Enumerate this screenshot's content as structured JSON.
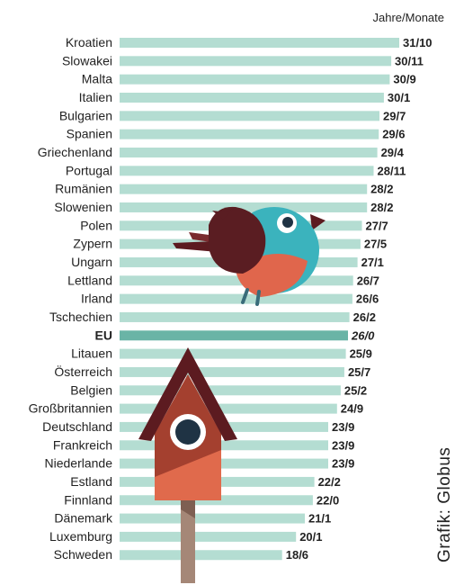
{
  "unit_label": "Jahre/Monate",
  "credit": "Grafik: Globus",
  "colors": {
    "bar": "#b4ddd2",
    "highlight_bar": "#6ab4a6",
    "text": "#222222",
    "house_roof": "#5c1b20",
    "house_body_dark": "#a4402f",
    "house_body_light": "#e06a4c",
    "pole": "#a58777",
    "bird_blue": "#3bb3bd",
    "bird_wing": "#5a1d22",
    "bird_belly": "#e0664c"
  },
  "chart_data": {
    "type": "bar",
    "orientation": "horizontal",
    "unit": "Jahre/Monate",
    "highlight": "EU",
    "categories": [
      "Kroatien",
      "Slowakei",
      "Malta",
      "Italien",
      "Bulgarien",
      "Spanien",
      "Griechenland",
      "Portugal",
      "Rumänien",
      "Slowenien",
      "Polen",
      "Zypern",
      "Ungarn",
      "Lettland",
      "Irland",
      "Tschechien",
      "EU",
      "Litauen",
      "Österreich",
      "Belgien",
      "Großbritannien",
      "Deutschland",
      "Frankreich",
      "Niederlande",
      "Estland",
      "Finnland",
      "Dänemark",
      "Luxemburg",
      "Schweden"
    ],
    "labels": [
      "31/10",
      "30/11",
      "30/9",
      "30/1",
      "29/7",
      "29/6",
      "29/4",
      "28/11",
      "28/2",
      "28/2",
      "27/7",
      "27/5",
      "27/1",
      "26/7",
      "26/6",
      "26/2",
      "26/0",
      "25/9",
      "25/7",
      "25/2",
      "24/9",
      "23/9",
      "23/9",
      "23/9",
      "22/2",
      "22/0",
      "21/1",
      "20/1",
      "18/6"
    ],
    "values": [
      31.833,
      30.917,
      30.75,
      30.083,
      29.583,
      29.5,
      29.333,
      28.917,
      28.167,
      28.167,
      27.583,
      27.417,
      27.083,
      26.583,
      26.5,
      26.167,
      26.0,
      25.75,
      25.583,
      25.167,
      24.75,
      23.75,
      23.75,
      23.75,
      22.167,
      22.0,
      21.083,
      20.083,
      18.5
    ],
    "xlim": [
      0,
      31.833
    ]
  }
}
